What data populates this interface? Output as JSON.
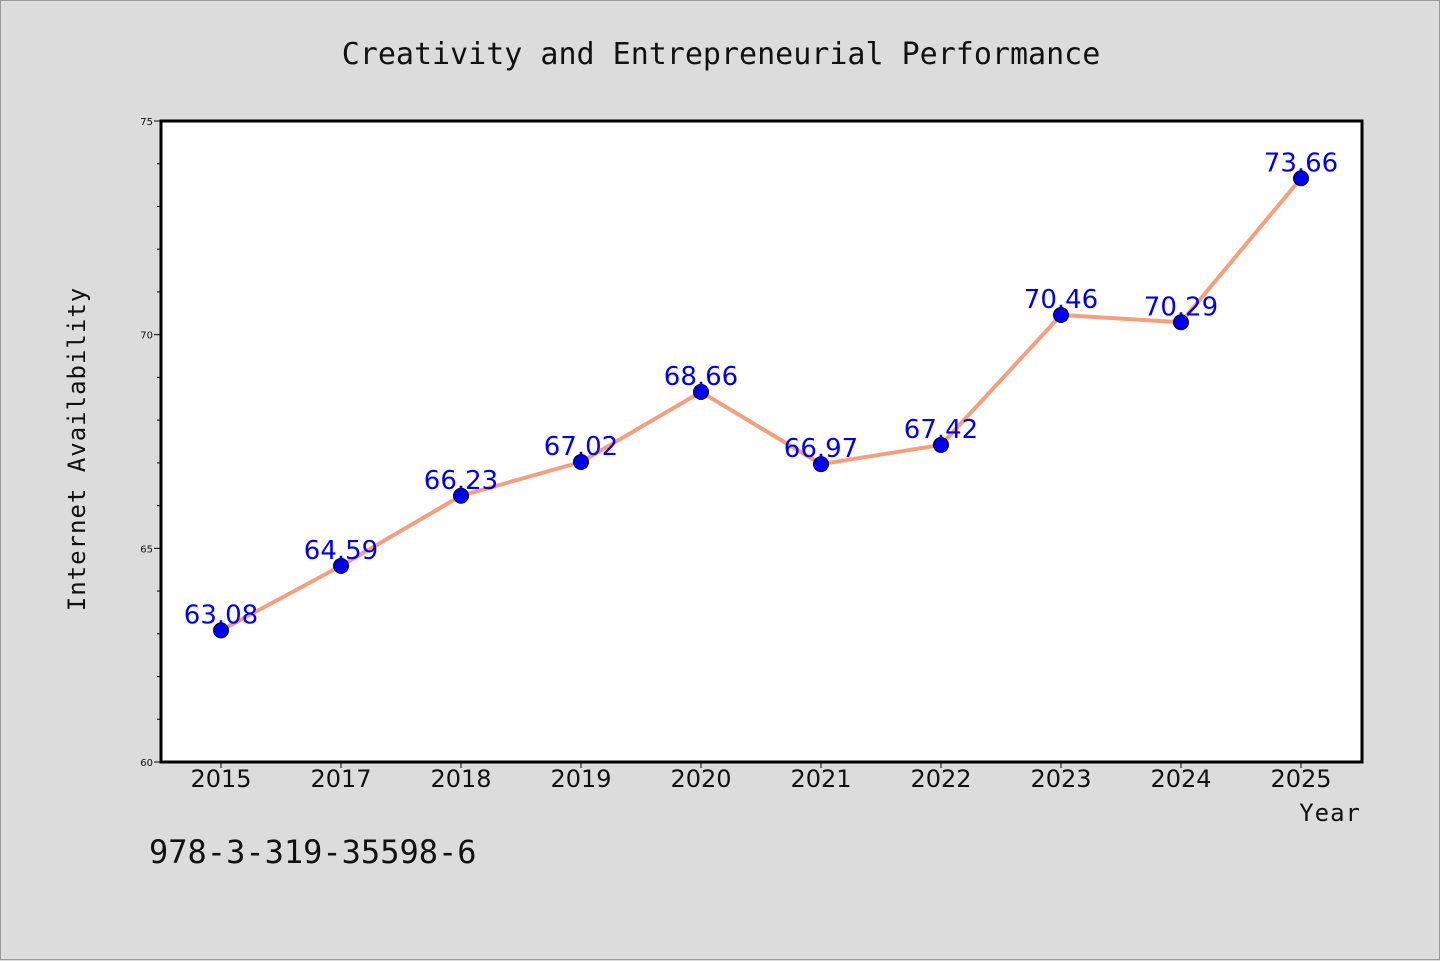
{
  "chart_data": {
    "type": "line",
    "title": "Creativity and Entrepreneurial Performance",
    "xlabel": "Year",
    "ylabel": "Internet Availability",
    "categories": [
      "2015",
      "2017",
      "2018",
      "2019",
      "2020",
      "2021",
      "2022",
      "2023",
      "2024",
      "2025"
    ],
    "series": [
      {
        "values": [
          63.08,
          64.59,
          66.23,
          67.02,
          68.66,
          66.97,
          67.42,
          70.46,
          70.29,
          73.66
        ],
        "labels": [
          "63.08",
          "64.59",
          "66.23",
          "67.02",
          "68.66",
          "66.97",
          "67.42",
          "70.46",
          "70.29",
          "73.66"
        ],
        "line_color": "#f4a07f",
        "marker_color": "#0000ee"
      }
    ],
    "ylim": [
      60,
      75
    ],
    "yticks": [
      60,
      65,
      70,
      75
    ],
    "ytick_labels": [
      "60",
      "65",
      "70",
      "75"
    ],
    "grid": false,
    "legend": "none"
  },
  "footer": {
    "isbn": "978-3-319-35598-6"
  }
}
